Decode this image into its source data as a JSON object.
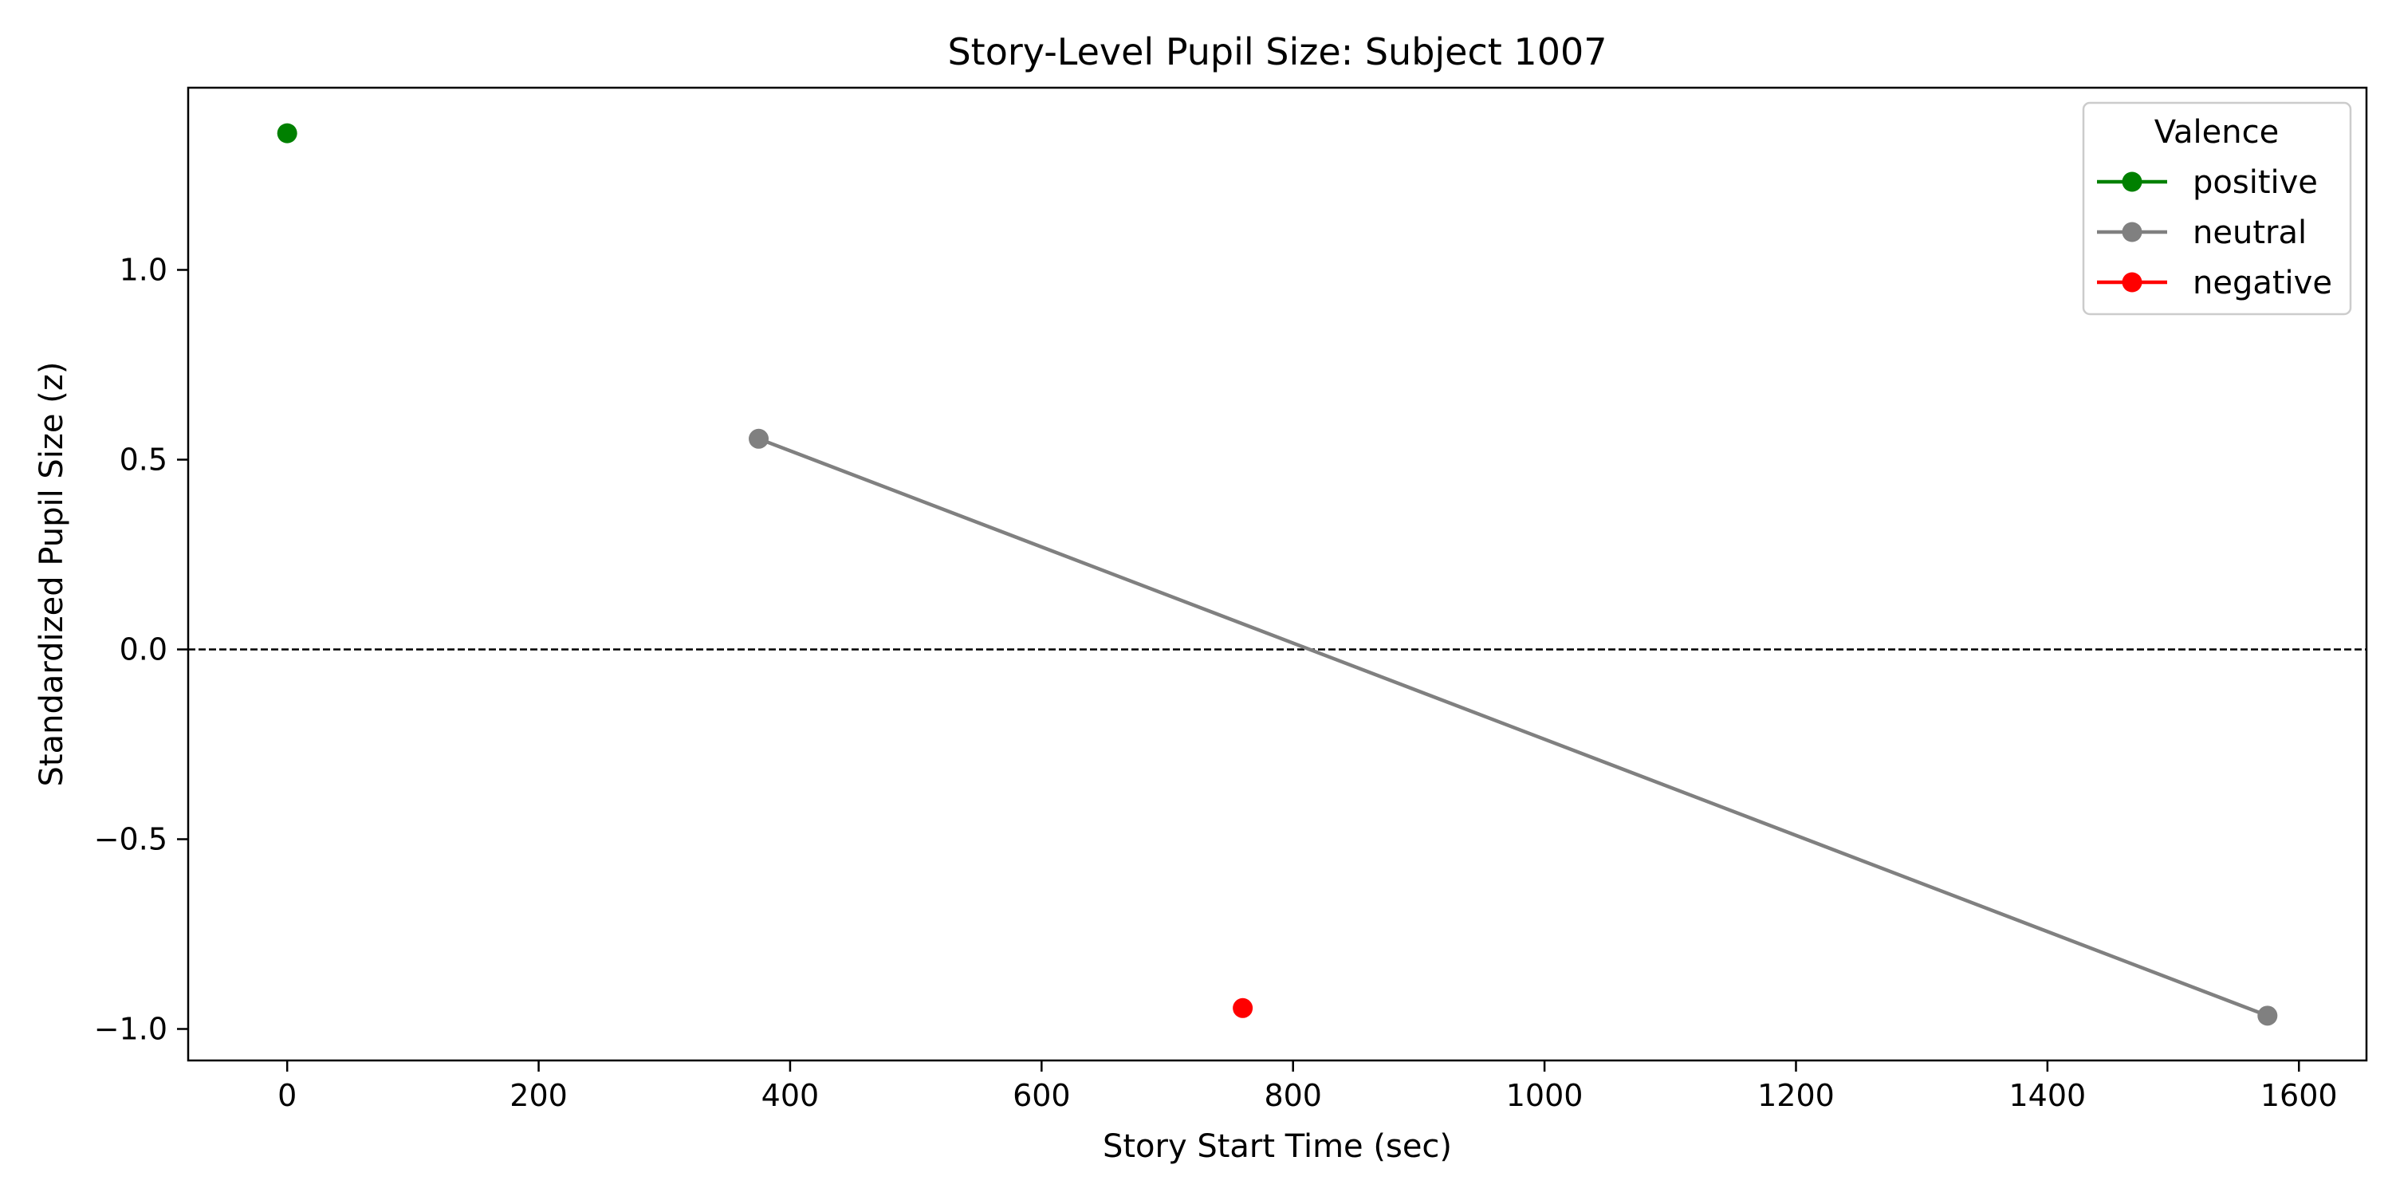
{
  "chart_data": {
    "type": "line",
    "title": "Story-Level Pupil Size: Subject 1007",
    "xlabel": "Story Start Time (sec)",
    "ylabel": "Standardized Pupil Size (z)",
    "xlim": [
      -78.75,
      1653.75
    ],
    "ylim": [
      -1.083,
      1.48
    ],
    "xticks": [
      0,
      200,
      400,
      600,
      800,
      1000,
      1200,
      1400,
      1600
    ],
    "xtick_labels": [
      "0",
      "200",
      "400",
      "600",
      "800",
      "1000",
      "1200",
      "1400",
      "1600"
    ],
    "yticks": [
      1.0,
      0.5,
      0.0,
      -0.5,
      -1.0
    ],
    "ytick_labels": [
      "1.0",
      "0.5",
      "0.0",
      "−0.5",
      "−1.0"
    ],
    "grid": false,
    "reference_line": {
      "y": 0.0,
      "style": "dashed",
      "color": "#000000"
    },
    "legend": {
      "title": "Valence",
      "placement": "top-right"
    },
    "series": [
      {
        "name": "positive",
        "color": "#008000",
        "points": [
          {
            "x": 0,
            "y": 1.36
          }
        ]
      },
      {
        "name": "neutral",
        "color": "#808080",
        "points": [
          {
            "x": 375,
            "y": 0.555
          },
          {
            "x": 1575,
            "y": -0.965
          }
        ]
      },
      {
        "name": "negative",
        "color": "#ff0000",
        "points": [
          {
            "x": 760,
            "y": -0.945
          }
        ]
      }
    ]
  }
}
